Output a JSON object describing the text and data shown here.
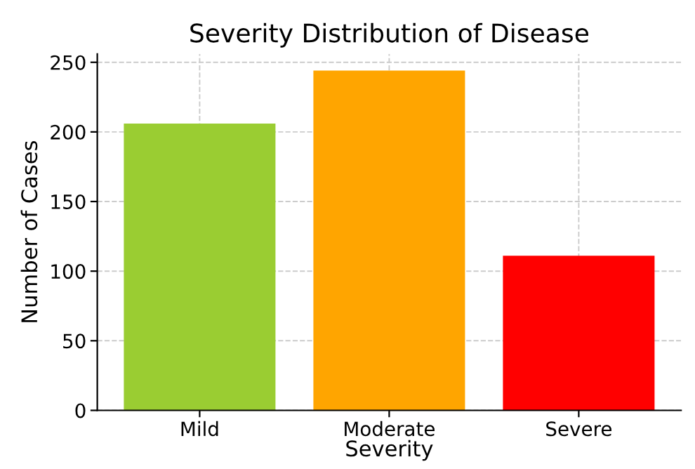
{
  "chart_data": {
    "type": "bar",
    "title": "Severity Distribution of Disease",
    "xlabel": "Severity",
    "ylabel": "Number of Cases",
    "categories": [
      "Mild",
      "Moderate",
      "Severe"
    ],
    "values": [
      206,
      244,
      111
    ],
    "colors": [
      "#9acd32",
      "#ffa500",
      "#ff0000"
    ],
    "ylim": [
      0,
      256
    ],
    "yticks": [
      0,
      50,
      100,
      150,
      200,
      250
    ],
    "grid": true
  }
}
